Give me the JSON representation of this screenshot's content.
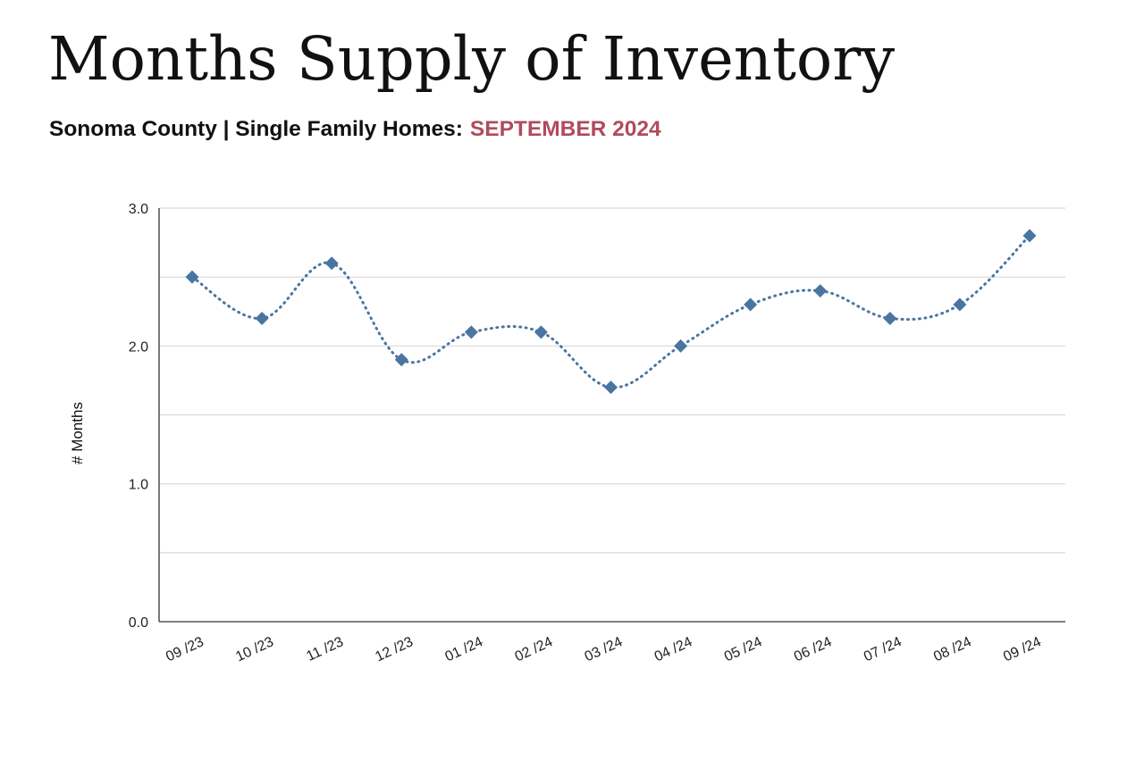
{
  "header": {
    "title": "Months Supply of Inventory",
    "subtitle": "Sonoma County | Single Family Homes:",
    "period": "SEPTEMBER 2024"
  },
  "colors": {
    "accent": "#b04b5c",
    "series": "#4a75a0",
    "grid": "#d9d9d9",
    "axis": "#333333"
  },
  "chart_data": {
    "type": "line",
    "categories": [
      "09 /23",
      "10 /23",
      "11 /23",
      "12 /23",
      "01 /24",
      "02 /24",
      "03 /24",
      "04 /24",
      "05 /24",
      "06 /24",
      "07 /24",
      "08 /24",
      "09 /24"
    ],
    "series": [
      {
        "values": [
          2.5,
          2.2,
          2.6,
          1.9,
          2.1,
          2.1,
          1.7,
          2.0,
          2.3,
          2.4,
          2.2,
          2.3,
          2.8
        ]
      }
    ],
    "ylabel": "# Months",
    "xlabel": "",
    "ylim": [
      0,
      3
    ],
    "yticks": [
      "0.0",
      "1.0",
      "2.0",
      "3.0"
    ],
    "grid": true,
    "line_style": "dotted",
    "smooth": true,
    "marker": "diamond"
  }
}
